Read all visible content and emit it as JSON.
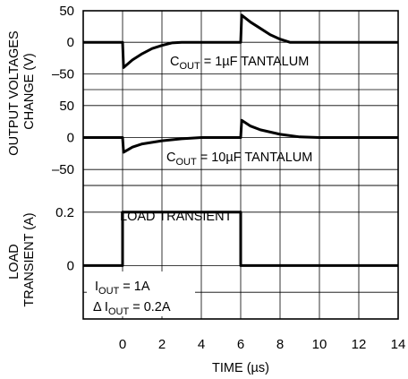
{
  "chart_data": {
    "type": "line",
    "x_axis": {
      "label": "TIME (µs)",
      "range": [
        -2,
        14
      ],
      "ticks": [
        0,
        2,
        4,
        6,
        8,
        10,
        12,
        14
      ]
    },
    "y_axis_labels": {
      "upper": "OUTPUT VOLTAGES CHANGE (V)",
      "upper_lines": [
        "OUTPUT VOLTAGES",
        "CHANGE (V)"
      ],
      "lower": "LOAD TRANSIENT (A)",
      "lower_lines": [
        "LOAD",
        "TRANSIENT (A)"
      ]
    },
    "grid": true,
    "panels": [
      {
        "id": "vout_1uF",
        "annotation": {
          "prefix": "C",
          "sub": "OUT",
          "suffix": " = 1µF TANTALUM"
        },
        "y_range": [
          -75,
          50
        ],
        "y_ticks": [
          50,
          0,
          -50
        ],
        "series": {
          "x": [
            -2,
            0,
            0.05,
            0.5,
            1,
            1.5,
            2,
            2.5,
            3,
            6,
            6.05,
            6.5,
            7,
            7.5,
            8,
            8.5,
            14
          ],
          "y": [
            0,
            0,
            -40,
            -28,
            -18,
            -10,
            -5,
            -1,
            0,
            0,
            43,
            32,
            22,
            12,
            5,
            0,
            0
          ]
        }
      },
      {
        "id": "vout_10uF",
        "annotation": {
          "prefix": "C",
          "sub": "OUT",
          "suffix": " = 10µF TANTALUM"
        },
        "y_range": [
          -75,
          75
        ],
        "y_ticks": [
          50,
          0,
          -50
        ],
        "series": {
          "x": [
            -2,
            0,
            0.05,
            0.5,
            1,
            2,
            3,
            4,
            6,
            6.05,
            6.5,
            7,
            8,
            9,
            10,
            14
          ],
          "y": [
            0,
            0,
            -23,
            -15,
            -10,
            -5,
            -2,
            0,
            0,
            27,
            18,
            12,
            5,
            1,
            0,
            0
          ]
        }
      },
      {
        "id": "load",
        "annotation_title": "LOAD TRANSIENT",
        "annotation_iout": {
          "prefix": "I",
          "sub": "OUT",
          "suffix": " = 1A"
        },
        "annotation_delta": {
          "prefix": "Δ I",
          "sub": "OUT",
          "suffix": " = 0.2A"
        },
        "y_range": [
          -0.2,
          0.3
        ],
        "y_ticks": [
          0.2,
          0
        ],
        "series": {
          "x": [
            -2,
            0,
            0,
            6,
            6,
            14
          ],
          "y": [
            0,
            0,
            0.2,
            0.2,
            0,
            0
          ]
        }
      }
    ]
  }
}
